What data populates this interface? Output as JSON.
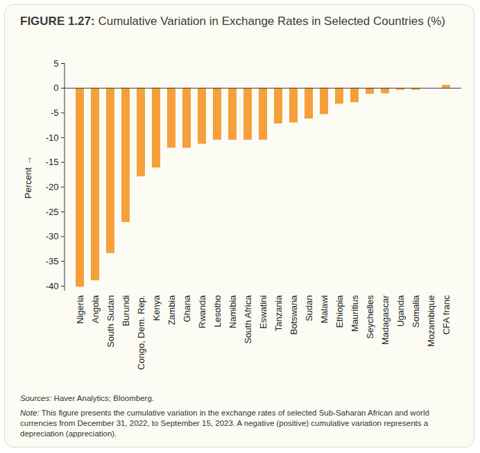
{
  "chart_data": {
    "type": "bar",
    "title": "FIGURE 1.27: Cumulative Variation in Exchange Rates in Selected Countries (%)",
    "y_label": "Percent",
    "categories": [
      "Nigeria",
      "Angola",
      "South Sudan",
      "Burundi",
      "Congo, Dem. Rep.",
      "Kenya",
      "Zambia",
      "Ghana",
      "Rwanda",
      "Lesotho",
      "Namibia",
      "South Africa",
      "Eswatini",
      "Tanzania",
      "Botswana",
      "Sudan",
      "Malawi",
      "Ethiopia",
      "Mauritius",
      "Seychelles",
      "Madagascar",
      "Uganda",
      "Somalia",
      "Mozambique",
      "CFA franc"
    ],
    "values": [
      -40.2,
      -38.9,
      -33.4,
      -27.1,
      -17.9,
      -16.1,
      -12.1,
      -12.1,
      -11.3,
      -10.5,
      -10.5,
      -10.5,
      -10.5,
      -7.2,
      -7.0,
      -6.2,
      -5.3,
      -3.2,
      -2.9,
      -1.2,
      -1.1,
      -0.4,
      -0.4,
      0,
      0.6
    ],
    "color": "#f5a03a",
    "ylim": [
      -41,
      5
    ],
    "yticks": [
      5,
      0,
      -5,
      -10,
      -15,
      -20,
      -25,
      -30,
      -35,
      -40
    ],
    "grid": false,
    "data_labels": false,
    "source": "Sources: Haver Analytics; Bloomberg.",
    "note": "Note: This figure presents the cumulative variation in the exchange rates of selected Sub-Saharan African and world currencies from December 31, 2022, to September 15, 2023. A negative (positive) cumulative variation represents a depreciation (appreciation)."
  }
}
